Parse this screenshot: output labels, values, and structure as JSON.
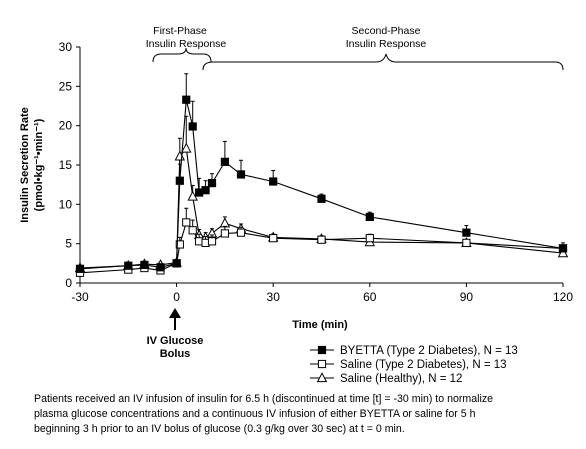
{
  "chart_data": {
    "type": "line",
    "xlabel": "Time (min)",
    "ylabel": "Insulin Secretion Rate",
    "ylabel_unit": "(pmol•kg⁻¹•min⁻¹)",
    "xlim": [
      -30,
      120
    ],
    "ylim": [
      0,
      30
    ],
    "xticks": [
      "-30",
      "0",
      "30",
      "60",
      "90",
      "120"
    ],
    "yticks": [
      "0",
      "5",
      "10",
      "15",
      "20",
      "25",
      "30"
    ],
    "grid": false,
    "legend_position": "bottom-right",
    "annotations": {
      "first_phase_line1": "First-Phase",
      "first_phase_line2": "Insulin Response",
      "second_phase_line1": "Second-Phase",
      "second_phase_line2": "Insulin Response",
      "arrow_label_line1": "IV Glucose",
      "arrow_label_line2": "Bolus"
    },
    "series": [
      {
        "name": "BYETTA (Type 2 Diabetes), N = 13",
        "marker": "filled-square",
        "color": "#000000",
        "points": [
          {
            "x": -30,
            "y": 1.8
          },
          {
            "x": -15,
            "y": 2.2
          },
          {
            "x": -10,
            "y": 2.3
          },
          {
            "x": -5,
            "y": 2.0
          },
          {
            "x": 0,
            "y": 2.5
          },
          {
            "x": 1,
            "y": 13.0
          },
          {
            "x": 3,
            "y": 23.3
          },
          {
            "x": 5,
            "y": 19.9
          },
          {
            "x": 7,
            "y": 11.5
          },
          {
            "x": 9,
            "y": 11.8
          },
          {
            "x": 11,
            "y": 12.7
          },
          {
            "x": 15,
            "y": 15.4
          },
          {
            "x": 20,
            "y": 13.8
          },
          {
            "x": 30,
            "y": 12.9
          },
          {
            "x": 45,
            "y": 10.7
          },
          {
            "x": 60,
            "y": 8.4
          },
          {
            "x": 90,
            "y": 6.4
          },
          {
            "x": 120,
            "y": 4.4
          }
        ],
        "error_up": [
          0.3,
          0.3,
          0.3,
          0.3,
          0.4,
          2.1,
          3.3,
          3.2,
          1.8,
          1.2,
          1.2,
          2.6,
          1.8,
          1.4,
          0.6,
          0.6,
          0.9,
          0.7
        ]
      },
      {
        "name": "Saline (Type 2 Diabetes), N = 13",
        "marker": "open-square",
        "color": "#000000",
        "points": [
          {
            "x": -30,
            "y": 1.3
          },
          {
            "x": -15,
            "y": 1.7
          },
          {
            "x": -10,
            "y": 1.9
          },
          {
            "x": -5,
            "y": 1.6
          },
          {
            "x": 0,
            "y": 2.5
          },
          {
            "x": 1,
            "y": 4.9
          },
          {
            "x": 3,
            "y": 7.7
          },
          {
            "x": 5,
            "y": 6.7
          },
          {
            "x": 7,
            "y": 5.3
          },
          {
            "x": 9,
            "y": 5.1
          },
          {
            "x": 11,
            "y": 5.3
          },
          {
            "x": 15,
            "y": 6.3
          },
          {
            "x": 20,
            "y": 6.4
          },
          {
            "x": 30,
            "y": 5.7
          },
          {
            "x": 45,
            "y": 5.5
          },
          {
            "x": 60,
            "y": 5.7
          },
          {
            "x": 90,
            "y": 5.1
          },
          {
            "x": 120,
            "y": 4.4
          }
        ],
        "error_up": [
          0.2,
          0.3,
          0.3,
          0.3,
          0.4,
          0.9,
          1.8,
          1.3,
          0.9,
          0.8,
          0.8,
          0.9,
          0.7,
          0.5,
          0.4,
          0.5,
          0.4,
          0.4
        ]
      },
      {
        "name": "Saline (Healthy), N = 12",
        "marker": "open-triangle",
        "color": "#000000",
        "points": [
          {
            "x": -30,
            "y": 1.9
          },
          {
            "x": -15,
            "y": 2.2
          },
          {
            "x": -10,
            "y": 2.4
          },
          {
            "x": -5,
            "y": 2.3
          },
          {
            "x": 0,
            "y": 2.6
          },
          {
            "x": 1,
            "y": 16.1
          },
          {
            "x": 3,
            "y": 17.1
          },
          {
            "x": 5,
            "y": 11.0
          },
          {
            "x": 7,
            "y": 6.1
          },
          {
            "x": 9,
            "y": 5.8
          },
          {
            "x": 11,
            "y": 6.3
          },
          {
            "x": 15,
            "y": 7.6
          },
          {
            "x": 20,
            "y": 6.9
          },
          {
            "x": 30,
            "y": 5.8
          },
          {
            "x": 45,
            "y": 5.6
          },
          {
            "x": 60,
            "y": 5.2
          },
          {
            "x": 90,
            "y": 5.1
          },
          {
            "x": 120,
            "y": 3.8
          }
        ],
        "error_up": [
          0.2,
          0.3,
          0.3,
          0.3,
          0.3,
          2.3,
          4.1,
          1.4,
          0.7,
          0.6,
          0.6,
          0.8,
          0.6,
          0.4,
          0.4,
          0.3,
          0.3,
          0.3
        ]
      }
    ]
  },
  "caption": {
    "line1": "Patients received an IV infusion of insulin for 6.5 h (discontinued at time [t] = -30 min) to normalize",
    "line2": "plasma glucose concentrations and a continuous IV infusion of either BYETTA or saline for 5 h",
    "line3": "beginning 3 h prior to an IV bolus of glucose (0.3 g/kg over 30 sec) at t = 0 min."
  }
}
